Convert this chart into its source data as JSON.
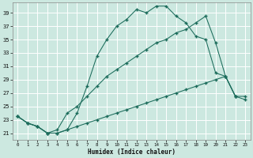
{
  "xlabel": "Humidex (Indice chaleur)",
  "xlim": [
    -0.5,
    23.5
  ],
  "ylim": [
    20.0,
    40.5
  ],
  "yticks": [
    21,
    23,
    25,
    27,
    29,
    31,
    33,
    35,
    37,
    39
  ],
  "xticks": [
    0,
    1,
    2,
    3,
    4,
    5,
    6,
    7,
    8,
    9,
    10,
    11,
    12,
    13,
    14,
    15,
    16,
    17,
    18,
    19,
    20,
    21,
    22,
    23
  ],
  "bg_color": "#cce8e0",
  "grid_color": "#b0d8d0",
  "line_color": "#1a6b5a",
  "curve1_x": [
    0,
    1,
    2,
    3,
    4,
    5,
    6,
    7,
    8,
    9,
    10,
    11,
    12,
    13,
    14,
    15,
    16,
    17,
    18,
    19,
    20,
    21,
    22
  ],
  "curve1_y": [
    23.5,
    22.5,
    22.0,
    21.0,
    21.0,
    21.5,
    24.0,
    28.0,
    32.5,
    35.0,
    37.0,
    38.0,
    39.5,
    39.0,
    40.0,
    40.0,
    38.5,
    37.5,
    35.5,
    35.0,
    30.0,
    29.5,
    26.5
  ],
  "curve2_x": [
    0,
    1,
    2,
    3,
    4,
    5,
    6,
    7,
    8,
    9,
    10,
    11,
    12,
    13,
    14,
    15,
    16,
    17,
    18,
    19,
    20,
    21,
    22,
    23
  ],
  "curve2_y": [
    23.5,
    22.5,
    22.0,
    21.0,
    21.5,
    24.0,
    25.0,
    26.5,
    28.0,
    29.5,
    30.5,
    31.5,
    32.5,
    33.5,
    34.5,
    35.0,
    36.0,
    36.5,
    37.5,
    38.5,
    34.5,
    29.5,
    26.5,
    26.0
  ],
  "curve3_x": [
    0,
    1,
    2,
    3,
    4,
    5,
    6,
    7,
    8,
    9,
    10,
    11,
    12,
    13,
    14,
    15,
    16,
    17,
    18,
    19,
    20,
    21,
    22,
    23
  ],
  "curve3_y": [
    23.5,
    22.5,
    22.0,
    21.0,
    21.0,
    21.5,
    22.0,
    22.5,
    23.0,
    23.5,
    24.0,
    24.5,
    25.0,
    25.5,
    26.0,
    26.5,
    27.0,
    27.5,
    28.0,
    28.5,
    29.0,
    29.5,
    26.5,
    26.5
  ]
}
